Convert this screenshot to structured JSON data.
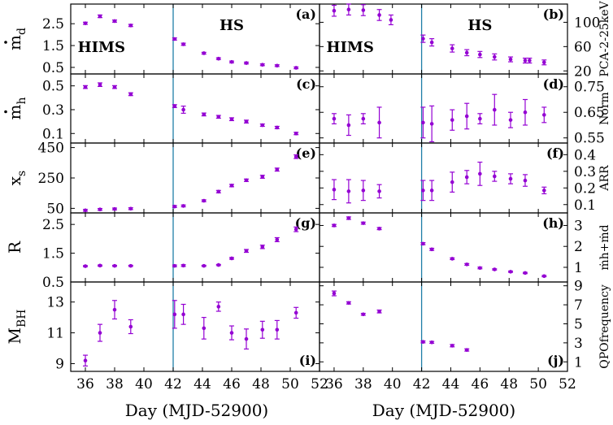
{
  "chart_data": {
    "type": "scatter",
    "x_axis": {
      "label": "Day (MJD-52900)",
      "range": [
        35,
        52
      ],
      "ticks": [
        36,
        38,
        40,
        42,
        44,
        46,
        48,
        50,
        52
      ]
    },
    "transition_day": 42,
    "marker_color": "#9400d3",
    "divider_color": "#1f7fa8",
    "regions": [
      "HIMS",
      "HS"
    ],
    "panels": [
      {
        "id": "a",
        "tag": "(a)",
        "side": "left",
        "row": 0,
        "ylabel": "ṁd",
        "ylabel_main": "m",
        "ylabel_sub": "d",
        "ylabel_dot": true,
        "ylim": [
          0.2,
          3.4
        ],
        "yticks": [
          0.5,
          1.5,
          2.5
        ],
        "tick_labels": [
          "0.5",
          "1.5",
          "2.5"
        ],
        "points": [
          {
            "x": 36.0,
            "y": 2.52,
            "err": 0.05
          },
          {
            "x": 37.0,
            "y": 2.84,
            "err": 0.06
          },
          {
            "x": 38.0,
            "y": 2.62,
            "err": 0.05
          },
          {
            "x": 39.1,
            "y": 2.42,
            "err": 0.05
          },
          {
            "x": 42.1,
            "y": 1.8,
            "err": 0.05
          },
          {
            "x": 42.7,
            "y": 1.56,
            "err": 0.05
          },
          {
            "x": 44.1,
            "y": 1.15,
            "err": 0.04
          },
          {
            "x": 45.1,
            "y": 0.9,
            "err": 0.04
          },
          {
            "x": 46.0,
            "y": 0.75,
            "err": 0.04
          },
          {
            "x": 47.0,
            "y": 0.7,
            "err": 0.04
          },
          {
            "x": 48.1,
            "y": 0.62,
            "err": 0.04
          },
          {
            "x": 49.1,
            "y": 0.58,
            "err": 0.04
          },
          {
            "x": 50.4,
            "y": 0.48,
            "err": 0.04
          }
        ]
      },
      {
        "id": "b",
        "tag": "(b)",
        "side": "right",
        "row": 0,
        "ylabel": "PCA-2-25keV",
        "ylim": [
          15,
          130
        ],
        "yticks": [
          20,
          60,
          100
        ],
        "tick_labels": [
          "20",
          "60",
          "100"
        ],
        "points": [
          {
            "x": 36.0,
            "y": 119,
            "err": 9
          },
          {
            "x": 37.0,
            "y": 121,
            "err": 9
          },
          {
            "x": 38.0,
            "y": 120,
            "err": 9
          },
          {
            "x": 39.1,
            "y": 112,
            "err": 9
          },
          {
            "x": 39.9,
            "y": 104,
            "err": 8
          },
          {
            "x": 42.1,
            "y": 73,
            "err": 6
          },
          {
            "x": 42.7,
            "y": 67,
            "err": 6
          },
          {
            "x": 44.1,
            "y": 57,
            "err": 6
          },
          {
            "x": 45.1,
            "y": 50,
            "err": 5
          },
          {
            "x": 46.0,
            "y": 47,
            "err": 5
          },
          {
            "x": 47.0,
            "y": 43,
            "err": 5
          },
          {
            "x": 48.1,
            "y": 39,
            "err": 4
          },
          {
            "x": 49.1,
            "y": 37,
            "err": 4
          },
          {
            "x": 49.4,
            "y": 37,
            "err": 4
          },
          {
            "x": 50.4,
            "y": 34,
            "err": 4
          }
        ]
      },
      {
        "id": "c",
        "tag": "(c)",
        "side": "left",
        "row": 1,
        "ylabel": "ṁh",
        "ylabel_main": "m",
        "ylabel_sub": "h",
        "ylabel_dot": true,
        "ylim": [
          0.02,
          0.6
        ],
        "yticks": [
          0.1,
          0.3,
          0.5
        ],
        "tick_labels": [
          "0.1",
          "0.3",
          "0.5"
        ],
        "points": [
          {
            "x": 36.0,
            "y": 0.49,
            "err": 0.012
          },
          {
            "x": 37.0,
            "y": 0.51,
            "err": 0.015
          },
          {
            "x": 38.0,
            "y": 0.49,
            "err": 0.012
          },
          {
            "x": 39.1,
            "y": 0.43,
            "err": 0.012
          },
          {
            "x": 42.1,
            "y": 0.33,
            "err": 0.012
          },
          {
            "x": 42.7,
            "y": 0.3,
            "err": 0.03
          },
          {
            "x": 44.1,
            "y": 0.26,
            "err": 0.012
          },
          {
            "x": 45.1,
            "y": 0.24,
            "err": 0.012
          },
          {
            "x": 46.0,
            "y": 0.22,
            "err": 0.012
          },
          {
            "x": 47.0,
            "y": 0.2,
            "err": 0.012
          },
          {
            "x": 48.1,
            "y": 0.17,
            "err": 0.01
          },
          {
            "x": 49.1,
            "y": 0.15,
            "err": 0.01
          },
          {
            "x": 50.4,
            "y": 0.1,
            "err": 0.01
          }
        ]
      },
      {
        "id": "d",
        "tag": "(d)",
        "side": "right",
        "row": 1,
        "ylabel": "Norm",
        "ylim": [
          0.53,
          0.8
        ],
        "yticks": [
          0.55,
          0.65,
          0.75
        ],
        "tick_labels": [
          "0.55",
          "0.65",
          "0.75"
        ],
        "points": [
          {
            "x": 36.0,
            "y": 0.625,
            "err": 0.02
          },
          {
            "x": 37.0,
            "y": 0.6,
            "err": 0.04
          },
          {
            "x": 38.0,
            "y": 0.625,
            "err": 0.02
          },
          {
            "x": 39.1,
            "y": 0.61,
            "err": 0.06
          },
          {
            "x": 42.1,
            "y": 0.61,
            "err": 0.06
          },
          {
            "x": 42.7,
            "y": 0.605,
            "err": 0.07
          },
          {
            "x": 44.1,
            "y": 0.62,
            "err": 0.04
          },
          {
            "x": 45.1,
            "y": 0.635,
            "err": 0.05
          },
          {
            "x": 46.0,
            "y": 0.625,
            "err": 0.02
          },
          {
            "x": 47.0,
            "y": 0.66,
            "err": 0.06
          },
          {
            "x": 48.1,
            "y": 0.62,
            "err": 0.03
          },
          {
            "x": 49.1,
            "y": 0.65,
            "err": 0.05
          },
          {
            "x": 50.4,
            "y": 0.64,
            "err": 0.03
          }
        ]
      },
      {
        "id": "e",
        "tag": "(e)",
        "side": "left",
        "row": 2,
        "ylabel": "xs",
        "ylabel_main": "x",
        "ylabel_sub": "s",
        "ylabel_dot": false,
        "ylim": [
          20,
          480
        ],
        "yticks": [
          50,
          250,
          450
        ],
        "tick_labels": [
          "50",
          "250",
          "450"
        ],
        "points": [
          {
            "x": 36.0,
            "y": 37,
            "err": 6
          },
          {
            "x": 37.0,
            "y": 43,
            "err": 6
          },
          {
            "x": 38.0,
            "y": 46,
            "err": 6
          },
          {
            "x": 39.1,
            "y": 48,
            "err": 6
          },
          {
            "x": 42.1,
            "y": 62,
            "err": 6
          },
          {
            "x": 42.7,
            "y": 66,
            "err": 6
          },
          {
            "x": 44.1,
            "y": 100,
            "err": 6
          },
          {
            "x": 45.1,
            "y": 160,
            "err": 8
          },
          {
            "x": 46.0,
            "y": 200,
            "err": 8
          },
          {
            "x": 47.0,
            "y": 235,
            "err": 8
          },
          {
            "x": 48.1,
            "y": 258,
            "err": 10
          },
          {
            "x": 49.1,
            "y": 305,
            "err": 10
          },
          {
            "x": 50.4,
            "y": 390,
            "err": 12
          }
        ]
      },
      {
        "id": "f",
        "tag": "(f)",
        "side": "right",
        "row": 2,
        "ylabel": "ARR",
        "ylim": [
          0.05,
          0.47
        ],
        "yticks": [
          0.1,
          0.2,
          0.3,
          0.4
        ],
        "tick_labels": [
          "0.1",
          "0.2",
          "0.3",
          "0.4"
        ],
        "points": [
          {
            "x": 36.0,
            "y": 0.19,
            "err": 0.06
          },
          {
            "x": 37.0,
            "y": 0.18,
            "err": 0.07
          },
          {
            "x": 38.0,
            "y": 0.185,
            "err": 0.06
          },
          {
            "x": 39.1,
            "y": 0.18,
            "err": 0.04
          },
          {
            "x": 42.1,
            "y": 0.185,
            "err": 0.06
          },
          {
            "x": 42.7,
            "y": 0.185,
            "err": 0.06
          },
          {
            "x": 44.1,
            "y": 0.235,
            "err": 0.06
          },
          {
            "x": 45.1,
            "y": 0.265,
            "err": 0.04
          },
          {
            "x": 46.0,
            "y": 0.285,
            "err": 0.07
          },
          {
            "x": 47.0,
            "y": 0.27,
            "err": 0.03
          },
          {
            "x": 48.1,
            "y": 0.255,
            "err": 0.03
          },
          {
            "x": 49.1,
            "y": 0.245,
            "err": 0.035
          },
          {
            "x": 50.4,
            "y": 0.185,
            "err": 0.02
          }
        ]
      },
      {
        "id": "g",
        "tag": "(g)",
        "side": "left",
        "row": 3,
        "ylabel": "R",
        "ylim": [
          0.5,
          2.9
        ],
        "yticks": [
          0.5,
          1.5,
          2.5
        ],
        "tick_labels": [
          "0.5",
          "1.5",
          "2.5"
        ],
        "points": [
          {
            "x": 36.0,
            "y": 1.05,
            "err": 0.02
          },
          {
            "x": 37.0,
            "y": 1.07,
            "err": 0.02
          },
          {
            "x": 38.0,
            "y": 1.06,
            "err": 0.02
          },
          {
            "x": 39.1,
            "y": 1.06,
            "err": 0.02
          },
          {
            "x": 42.1,
            "y": 1.06,
            "err": 0.03
          },
          {
            "x": 42.7,
            "y": 1.07,
            "err": 0.03
          },
          {
            "x": 44.1,
            "y": 1.06,
            "err": 0.02
          },
          {
            "x": 45.1,
            "y": 1.09,
            "err": 0.02
          },
          {
            "x": 46.0,
            "y": 1.32,
            "err": 0.03
          },
          {
            "x": 47.0,
            "y": 1.58,
            "err": 0.05
          },
          {
            "x": 48.1,
            "y": 1.72,
            "err": 0.06
          },
          {
            "x": 49.1,
            "y": 1.97,
            "err": 0.07
          },
          {
            "x": 50.4,
            "y": 2.33,
            "err": 0.08
          }
        ]
      },
      {
        "id": "h",
        "tag": "(h)",
        "side": "right",
        "row": 3,
        "ylabel": "ṁh+ṁd",
        "ylim": [
          0.3,
          3.6
        ],
        "yticks": [
          1,
          2,
          3
        ],
        "tick_labels": [
          "1",
          "2",
          "3"
        ],
        "points": [
          {
            "x": 36.0,
            "y": 3.0,
            "err": 0.05
          },
          {
            "x": 37.0,
            "y": 3.35,
            "err": 0.06
          },
          {
            "x": 38.0,
            "y": 3.11,
            "err": 0.05
          },
          {
            "x": 39.1,
            "y": 2.85,
            "err": 0.05
          },
          {
            "x": 42.1,
            "y": 2.13,
            "err": 0.05
          },
          {
            "x": 42.7,
            "y": 1.86,
            "err": 0.05
          },
          {
            "x": 44.1,
            "y": 1.41,
            "err": 0.04
          },
          {
            "x": 45.1,
            "y": 1.14,
            "err": 0.04
          },
          {
            "x": 46.0,
            "y": 0.97,
            "err": 0.04
          },
          {
            "x": 47.0,
            "y": 0.9,
            "err": 0.03
          },
          {
            "x": 48.1,
            "y": 0.79,
            "err": 0.03
          },
          {
            "x": 49.1,
            "y": 0.73,
            "err": 0.03
          },
          {
            "x": 50.4,
            "y": 0.58,
            "err": 0.03
          }
        ]
      },
      {
        "id": "i",
        "tag": "(i)",
        "side": "left",
        "row": 4,
        "ylabel": "MBH",
        "ylabel_main": "M",
        "ylabel_sub": "BH",
        "ylabel_dot": false,
        "ylim": [
          8.5,
          14.3
        ],
        "yticks": [
          9,
          11,
          13
        ],
        "tick_labels": [
          "9",
          "11",
          "13"
        ],
        "points": [
          {
            "x": 36.0,
            "y": 9.2,
            "err": 0.35
          },
          {
            "x": 37.0,
            "y": 11.0,
            "err": 0.55
          },
          {
            "x": 38.0,
            "y": 12.5,
            "err": 0.6
          },
          {
            "x": 39.1,
            "y": 11.4,
            "err": 0.45
          },
          {
            "x": 42.1,
            "y": 12.2,
            "err": 0.9
          },
          {
            "x": 42.7,
            "y": 12.2,
            "err": 0.65
          },
          {
            "x": 44.1,
            "y": 11.3,
            "err": 0.7
          },
          {
            "x": 45.1,
            "y": 12.7,
            "err": 0.3
          },
          {
            "x": 46.0,
            "y": 11.0,
            "err": 0.45
          },
          {
            "x": 47.0,
            "y": 10.6,
            "err": 0.65
          },
          {
            "x": 48.1,
            "y": 11.2,
            "err": 0.55
          },
          {
            "x": 49.1,
            "y": 11.2,
            "err": 0.6
          },
          {
            "x": 50.4,
            "y": 12.3,
            "err": 0.35
          }
        ]
      },
      {
        "id": "j",
        "tag": "(j)",
        "side": "right",
        "row": 4,
        "ylabel": "QPOfrequency",
        "ylim": [
          0,
          9.4
        ],
        "yticks": [
          1,
          3,
          5,
          7,
          9
        ],
        "tick_labels": [
          "1",
          "3",
          "5",
          "7",
          "9"
        ],
        "points": [
          {
            "x": 36.0,
            "y": 8.2,
            "err": 0.25
          },
          {
            "x": 37.0,
            "y": 7.2,
            "err": 0.12
          },
          {
            "x": 38.0,
            "y": 6.0,
            "err": 0.1
          },
          {
            "x": 39.1,
            "y": 6.3,
            "err": 0.15
          },
          {
            "x": 42.1,
            "y": 3.1,
            "err": 0.1
          },
          {
            "x": 42.7,
            "y": 3.05,
            "err": 0.1
          },
          {
            "x": 44.1,
            "y": 2.7,
            "err": 0.12
          },
          {
            "x": 45.1,
            "y": 2.25,
            "err": 0.12
          }
        ]
      }
    ]
  }
}
